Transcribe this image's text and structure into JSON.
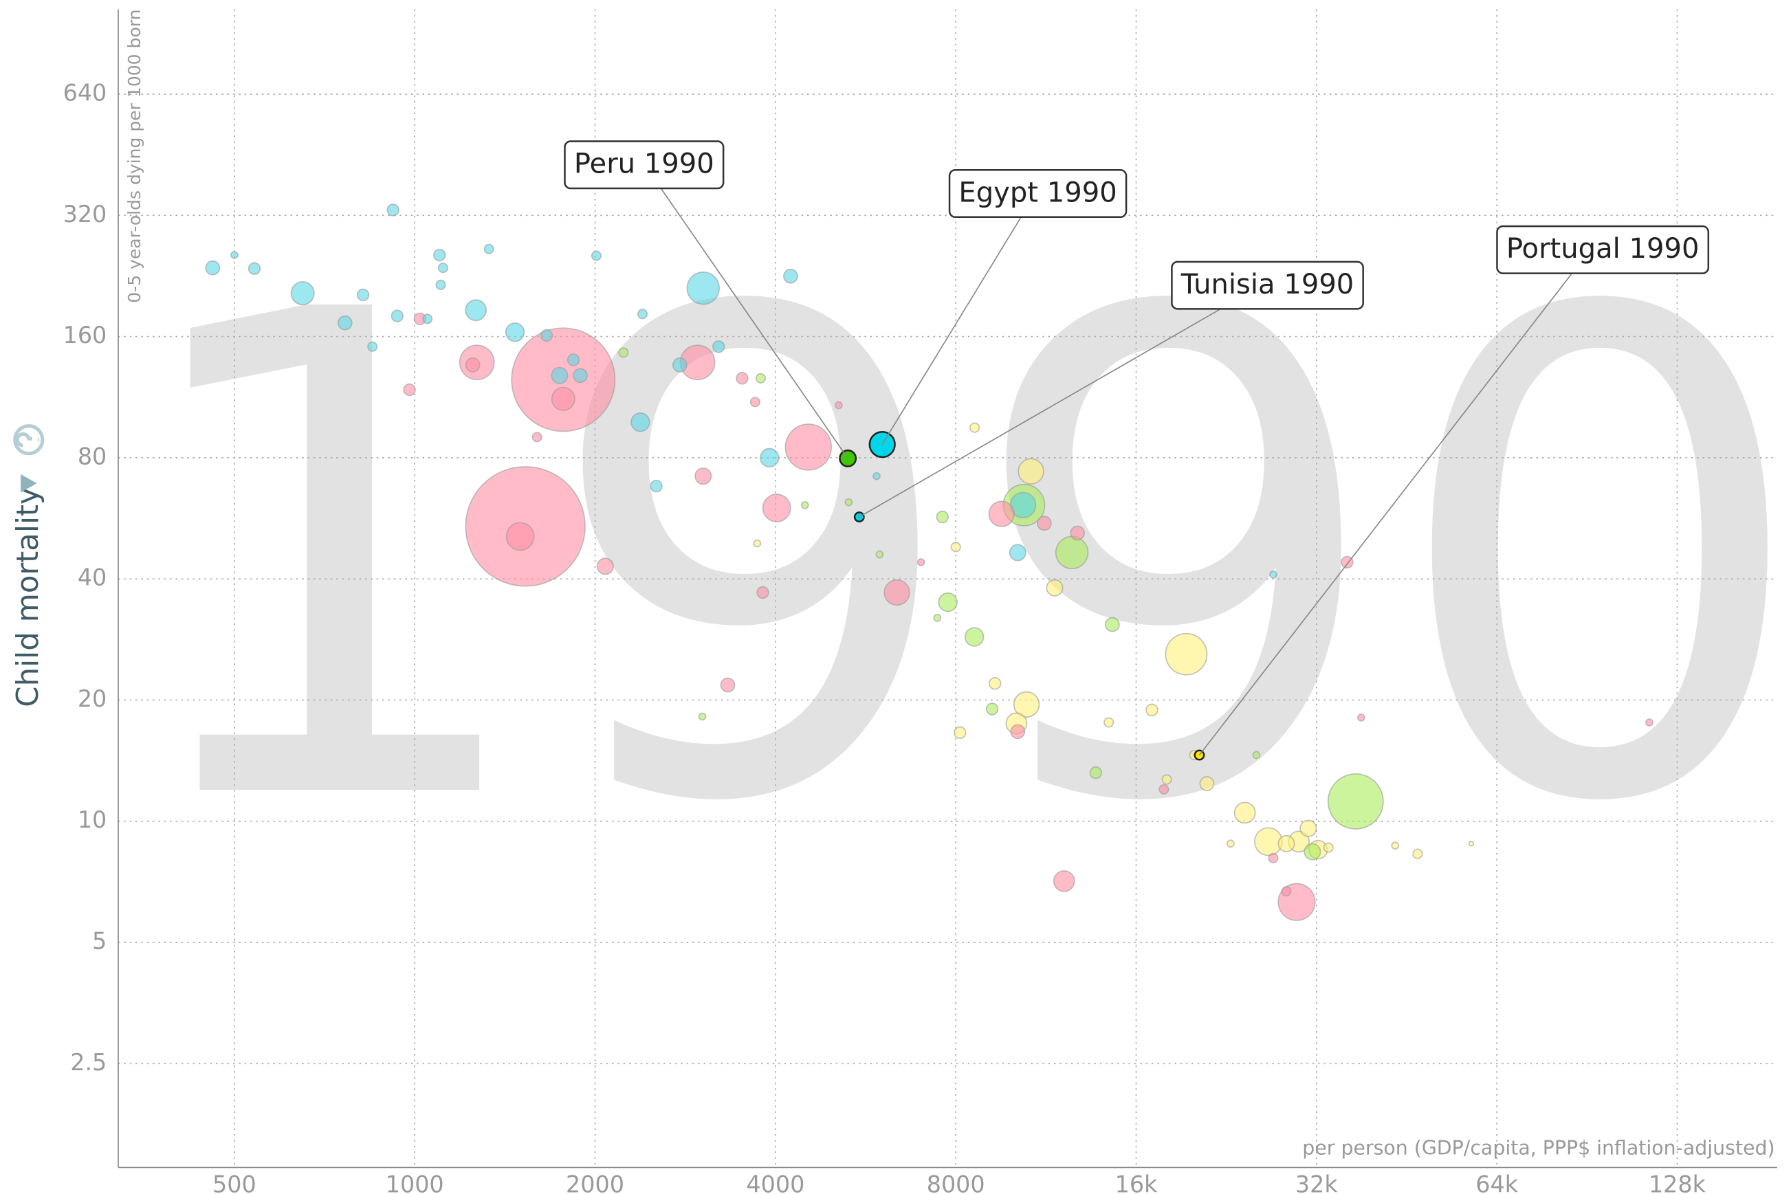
{
  "chart_data": {
    "type": "scatter",
    "watermark": "1990",
    "y_label": "Child mortality",
    "y_sublabel": "0-5 year-olds dying per 1000 born",
    "x_label": "per person (GDP/capita, PPP$ inflation-adjusted)",
    "log_x": true,
    "log_y": true,
    "grid": true,
    "xlim": [
      320,
      188000
    ],
    "ylim": [
      1.38,
      1040
    ],
    "xticks": [
      500,
      1000,
      2000,
      4000,
      8000,
      {
        "value": 16000,
        "label": "16k"
      },
      {
        "value": 32000,
        "label": "32k"
      },
      {
        "value": 64000,
        "label": "64k"
      },
      {
        "value": 128000,
        "label": "128k"
      }
    ],
    "yticks": [
      2.5,
      5,
      10,
      20,
      40,
      80,
      160,
      320,
      640
    ],
    "series": [
      {
        "color": "#5ad7e6",
        "x": [
          460,
          500,
          540,
          650,
          765,
          820,
          850,
          920,
          935,
          1050,
          1100,
          1105,
          1115,
          1265,
          1330,
          1470,
          1660,
          1745,
          1840,
          1890,
          2010,
          2380,
          2400,
          2530,
          2770,
          3030,
          3215,
          3910,
          4240,
          10150,
          10360,
          27100,
          5900
        ],
        "values": [
          237,
          255,
          236,
          205,
          173,
          203,
          151,
          330,
          180,
          177,
          255,
          215,
          237,
          186,
          264,
          164,
          161,
          128,
          140,
          128,
          254,
          98,
          182,
          68,
          136,
          211,
          151,
          80,
          226,
          46.5,
          61,
          41,
          72
        ],
        "sizes": [
          6,
          3,
          5,
          10,
          6,
          5,
          4,
          5,
          5,
          4,
          5,
          4,
          4,
          9,
          4,
          8,
          5,
          7,
          5,
          6,
          4,
          8,
          4,
          5,
          6,
          14,
          5,
          8,
          6,
          7,
          11,
          3,
          3
        ]
      },
      {
        "color": "#ff8fa3",
        "x": [
          1530,
          1500,
          1770,
          1770,
          1270,
          1250,
          1020,
          980,
          1600,
          2965,
          4540,
          4020,
          3030,
          3520,
          3700,
          3810,
          2080,
          3330,
          6380,
          9540,
          11240,
          12770,
          10150,
          12130,
          29650,
          36000,
          28500,
          27100,
          115000,
          38000,
          17800,
          5100,
          7000
        ],
        "values": [
          54,
          51,
          125,
          112,
          138,
          136,
          177,
          118,
          90,
          138,
          85,
          60,
          72,
          126,
          110,
          37,
          43,
          21.8,
          37,
          58,
          55,
          52,
          16.7,
          7.1,
          6.3,
          44,
          6.7,
          8.1,
          17.6,
          18.1,
          12,
          108,
          44
        ],
        "sizes": [
          52,
          12,
          45,
          10,
          15,
          6,
          5,
          5,
          4,
          15,
          20,
          12,
          7,
          5,
          4,
          5,
          7,
          6,
          11,
          11,
          6,
          6,
          6,
          9,
          16,
          5,
          4,
          4,
          3,
          3,
          4,
          3,
          3
        ]
      },
      {
        "color": "#a8ec5a",
        "x": [
          10400,
          12500,
          37200,
          7760,
          8590,
          14600,
          7600,
          13700,
          31500,
          9200,
          5970,
          5300,
          3780,
          2230,
          3020,
          4480,
          25400,
          7450
        ],
        "values": [
          61,
          46.5,
          11.2,
          35,
          28.7,
          30.8,
          57,
          13.2,
          8.4,
          19,
          46,
          62,
          126,
          146,
          18.2,
          61,
          14.6,
          32
        ],
        "sizes": [
          18,
          14,
          24,
          8,
          8,
          6,
          5,
          5,
          7,
          5,
          3,
          3,
          4,
          4,
          3,
          3,
          3,
          3
        ]
      },
      {
        "color": "#fff07a",
        "x": [
          19400,
          10680,
          10500,
          10100,
          11700,
          26600,
          24300,
          29900,
          31000,
          32200,
          28500,
          21000,
          17000,
          18000,
          47200,
          43300,
          58000,
          8130,
          9300,
          8600,
          8000,
          3730,
          33500,
          23000,
          14400,
          20000
        ],
        "values": [
          26,
          74,
          19.5,
          17.5,
          38,
          8.9,
          10.5,
          8.9,
          9.6,
          8.5,
          8.8,
          12.4,
          18.9,
          12.7,
          8.3,
          8.7,
          8.8,
          16.6,
          22,
          95,
          48,
          49,
          8.6,
          8.8,
          17.6,
          14.6
        ],
        "sizes": [
          18,
          11,
          11,
          9,
          7,
          12,
          9,
          9,
          7,
          8,
          7,
          6,
          5,
          4,
          4,
          3,
          2,
          5,
          5,
          4,
          4,
          3,
          4,
          3,
          4,
          4
        ]
      }
    ],
    "annotations": [
      {
        "text": "Peru 1990",
        "x": 5283,
        "y": 79.7,
        "size": 7,
        "color": "#3ec800"
      },
      {
        "text": "Egypt 1990",
        "x": 6030,
        "y": 86.3,
        "size": 11,
        "color": "#00d5e9"
      },
      {
        "text": "Tunisia 1990",
        "x": 5520,
        "y": 57,
        "size": 4,
        "color": "#00d5e9"
      },
      {
        "text": "Portugal 1990",
        "x": 20400,
        "y": 14.6,
        "size": 4,
        "color": "#ffe700"
      }
    ]
  }
}
